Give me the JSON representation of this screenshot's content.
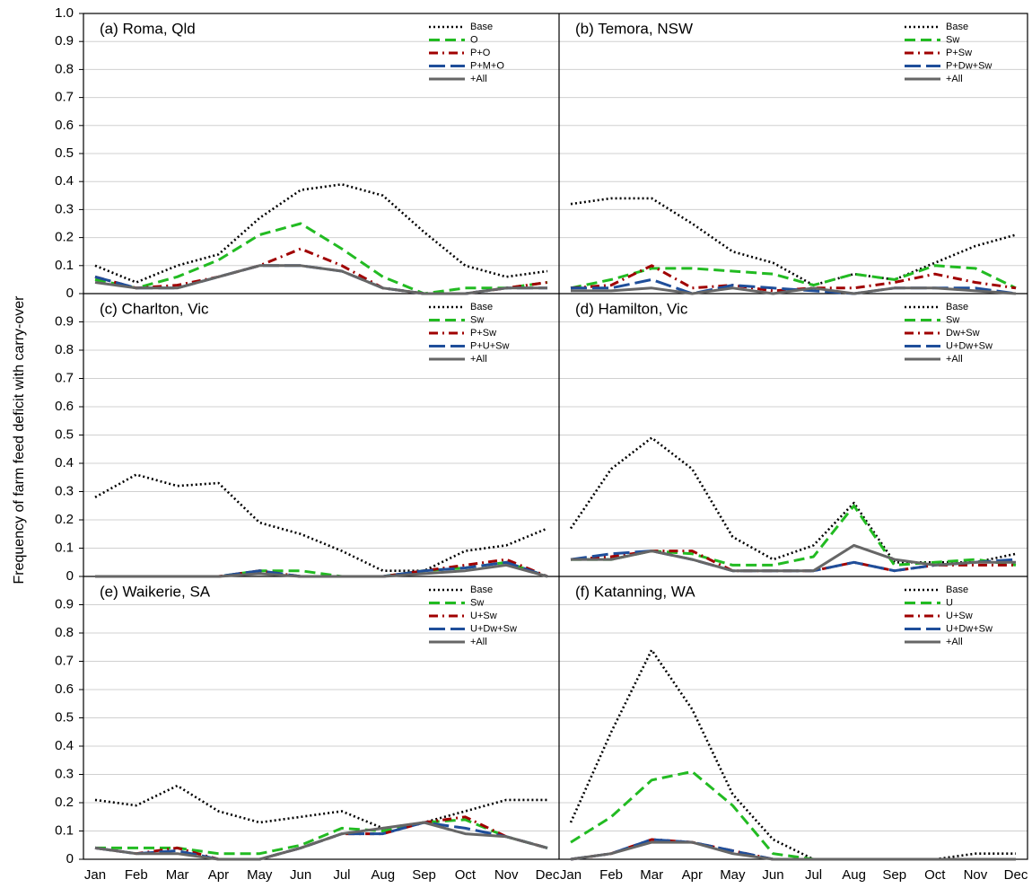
{
  "chart_data": [
    {
      "type": "line",
      "title": "(a) Roma, Qld",
      "ylim": [
        0,
        1
      ],
      "yticks": [
        0,
        0.1,
        0.2,
        0.3,
        0.4,
        0.5,
        0.6,
        0.7,
        0.8,
        0.9,
        {
          "value": 1,
          "label": "1.0"
        }
      ],
      "series": [
        {
          "name": "Base",
          "color": "#000000",
          "linestyle": "dotted",
          "values": [
            0.1,
            0.04,
            0.1,
            0.14,
            0.27,
            0.37,
            0.39,
            0.35,
            0.22,
            0.1,
            0.06,
            0.08
          ]
        },
        {
          "name": "O",
          "color": "#22bb22",
          "linestyle": "dashed",
          "values": [
            0.05,
            0.02,
            0.06,
            0.12,
            0.21,
            0.25,
            0.16,
            0.06,
            0.0,
            0.02,
            0.02,
            0.04
          ]
        },
        {
          "name": "P+O",
          "color": "#a00000",
          "linestyle": "dashdot",
          "values": [
            0.06,
            0.02,
            0.03,
            0.06,
            0.1,
            0.16,
            0.1,
            0.02,
            0.0,
            0.0,
            0.02,
            0.04
          ]
        },
        {
          "name": "P+M+O",
          "color": "#1f4e9a",
          "linestyle": "longdash",
          "values": [
            0.06,
            0.02,
            0.02,
            0.06,
            0.1,
            0.1,
            0.08,
            0.02,
            0.0,
            0.0,
            0.02,
            0.02
          ]
        },
        {
          "name": "+All",
          "color": "#666666",
          "linestyle": "solid",
          "values": [
            0.04,
            0.02,
            0.02,
            0.06,
            0.1,
            0.1,
            0.08,
            0.02,
            0.0,
            0.0,
            0.02,
            0.02
          ]
        }
      ]
    },
    {
      "type": "line",
      "title": "(b) Temora, NSW",
      "ylim": [
        0,
        1
      ],
      "series": [
        {
          "name": "Base",
          "color": "#000000",
          "linestyle": "dotted",
          "values": [
            0.32,
            0.34,
            0.34,
            0.25,
            0.15,
            0.11,
            0.03,
            0.07,
            0.05,
            0.11,
            0.17,
            0.21
          ]
        },
        {
          "name": "Sw",
          "color": "#22bb22",
          "linestyle": "dashed",
          "values": [
            0.02,
            0.05,
            0.09,
            0.09,
            0.08,
            0.07,
            0.03,
            0.07,
            0.05,
            0.1,
            0.09,
            0.02
          ]
        },
        {
          "name": "P+Sw",
          "color": "#a00000",
          "linestyle": "dashdot",
          "values": [
            0.02,
            0.03,
            0.1,
            0.02,
            0.03,
            0.01,
            0.02,
            0.02,
            0.04,
            0.07,
            0.04,
            0.02
          ]
        },
        {
          "name": "P+Dw+Sw",
          "color": "#1f4e9a",
          "linestyle": "longdash",
          "values": [
            0.02,
            0.02,
            0.05,
            0.0,
            0.03,
            0.02,
            0.01,
            0.0,
            0.02,
            0.02,
            0.02,
            0.0
          ]
        },
        {
          "name": "+All",
          "color": "#666666",
          "linestyle": "solid",
          "values": [
            0.01,
            0.01,
            0.02,
            0.0,
            0.02,
            0.0,
            0.02,
            0.0,
            0.02,
            0.02,
            0.01,
            0.0
          ]
        }
      ]
    },
    {
      "type": "line",
      "title": "(c) Charlton, Vic",
      "ylabel": "Frequency of farm feed deficit with carry-over",
      "ylim": [
        0,
        1
      ],
      "yticks": [
        0,
        0.1,
        0.2,
        0.3,
        0.4,
        0.5,
        0.6,
        0.7,
        0.8,
        0.9
      ],
      "series": [
        {
          "name": "Base",
          "color": "#000000",
          "linestyle": "dotted",
          "values": [
            0.28,
            0.36,
            0.32,
            0.33,
            0.19,
            0.15,
            0.09,
            0.02,
            0.02,
            0.09,
            0.11,
            0.17
          ]
        },
        {
          "name": "Sw",
          "color": "#22bb22",
          "linestyle": "dashed",
          "values": [
            0,
            0,
            0,
            0,
            0.02,
            0.02,
            0,
            0,
            0.02,
            0.03,
            0.05,
            0
          ]
        },
        {
          "name": "P+Sw",
          "color": "#a00000",
          "linestyle": "dashdot",
          "values": [
            0,
            0,
            0,
            0,
            0.02,
            0,
            0,
            0,
            0.02,
            0.04,
            0.06,
            0
          ]
        },
        {
          "name": "P+U+Sw",
          "color": "#1f4e9a",
          "linestyle": "longdash",
          "values": [
            0,
            0,
            0,
            0,
            0.02,
            0,
            0,
            0,
            0.02,
            0.03,
            0.05,
            0
          ]
        },
        {
          "name": "+All",
          "color": "#666666",
          "linestyle": "solid",
          "values": [
            0,
            0,
            0,
            0,
            0.01,
            0,
            0,
            0,
            0.01,
            0.02,
            0.04,
            0
          ]
        }
      ]
    },
    {
      "type": "line",
      "title": "(d) Hamilton, Vic",
      "ylim": [
        0,
        1
      ],
      "series": [
        {
          "name": "Base",
          "color": "#000000",
          "linestyle": "dotted",
          "values": [
            0.17,
            0.38,
            0.49,
            0.38,
            0.14,
            0.06,
            0.11,
            0.26,
            0.05,
            0.05,
            0.05,
            0.08
          ]
        },
        {
          "name": "Sw",
          "color": "#22bb22",
          "linestyle": "dashed",
          "values": [
            0.06,
            0.06,
            0.09,
            0.08,
            0.04,
            0.04,
            0.07,
            0.25,
            0.04,
            0.05,
            0.06,
            0.04
          ]
        },
        {
          "name": "Dw+Sw",
          "color": "#a00000",
          "linestyle": "dashdot",
          "values": [
            0.06,
            0.07,
            0.09,
            0.09,
            0.02,
            0.02,
            0.02,
            0.05,
            0.02,
            0.04,
            0.04,
            0.04
          ]
        },
        {
          "name": "U+Dw+Sw",
          "color": "#1f4e9a",
          "linestyle": "longdash",
          "values": [
            0.06,
            0.08,
            0.09,
            0.06,
            0.02,
            0.02,
            0.02,
            0.05,
            0.02,
            0.04,
            0.05,
            0.06
          ]
        },
        {
          "name": "+All",
          "color": "#666666",
          "linestyle": "solid",
          "values": [
            0.06,
            0.06,
            0.09,
            0.06,
            0.02,
            0.02,
            0.02,
            0.11,
            0.06,
            0.04,
            0.05,
            0.05
          ]
        }
      ]
    },
    {
      "type": "line",
      "title": "(e) Waikerie, SA",
      "ylim": [
        0,
        1
      ],
      "yticks": [
        0,
        0.1,
        0.2,
        0.3,
        0.4,
        0.5,
        0.6,
        0.7,
        0.8,
        0.9
      ],
      "categories": [
        "Jan",
        "Feb",
        "Mar",
        "Apr",
        "May",
        "Jun",
        "Jul",
        "Aug",
        "Sep",
        "Oct",
        "Nov",
        "Dec"
      ],
      "series": [
        {
          "name": "Base",
          "color": "#000000",
          "linestyle": "dotted",
          "values": [
            0.21,
            0.19,
            0.26,
            0.17,
            0.13,
            0.15,
            0.17,
            0.11,
            0.13,
            0.17,
            0.21,
            0.21
          ]
        },
        {
          "name": "Sw",
          "color": "#22bb22",
          "linestyle": "dashed",
          "values": [
            0.04,
            0.04,
            0.04,
            0.02,
            0.02,
            0.05,
            0.11,
            0.1,
            0.13,
            0.14,
            0.08,
            0.04
          ]
        },
        {
          "name": "U+Sw",
          "color": "#a00000",
          "linestyle": "dashdot",
          "values": [
            0.04,
            0.02,
            0.04,
            0.0,
            0.0,
            0.04,
            0.09,
            0.09,
            0.13,
            0.15,
            0.08,
            0.04
          ]
        },
        {
          "name": "U+Dw+Sw",
          "color": "#1f4e9a",
          "linestyle": "longdash",
          "values": [
            0.04,
            0.02,
            0.03,
            0.0,
            0.0,
            0.04,
            0.09,
            0.09,
            0.13,
            0.11,
            0.08,
            0.04
          ]
        },
        {
          "name": "+All",
          "color": "#666666",
          "linestyle": "solid",
          "values": [
            0.04,
            0.02,
            0.02,
            0.0,
            0.0,
            0.04,
            0.09,
            0.11,
            0.13,
            0.09,
            0.08,
            0.04
          ]
        }
      ]
    },
    {
      "type": "line",
      "title": "(f) Katanning, WA",
      "ylim": [
        0,
        1
      ],
      "categories": [
        "Jan",
        "Feb",
        "Mar",
        "Apr",
        "May",
        "Jun",
        "Jul",
        "Aug",
        "Sep",
        "Oct",
        "Nov",
        "Dec"
      ],
      "series": [
        {
          "name": "Base",
          "color": "#000000",
          "linestyle": "dotted",
          "values": [
            0.13,
            0.45,
            0.74,
            0.53,
            0.23,
            0.07,
            0,
            0,
            0,
            0,
            0.02,
            0.02
          ]
        },
        {
          "name": "U",
          "color": "#22bb22",
          "linestyle": "dashed",
          "values": [
            0.06,
            0.15,
            0.28,
            0.31,
            0.19,
            0.02,
            0,
            0,
            0,
            0,
            0,
            0
          ]
        },
        {
          "name": "U+Sw",
          "color": "#a00000",
          "linestyle": "dashdot",
          "values": [
            0,
            0.02,
            0.07,
            0.06,
            0.03,
            0,
            0,
            0,
            0,
            0,
            0,
            0
          ]
        },
        {
          "name": "U+Dw+Sw",
          "color": "#1f4e9a",
          "linestyle": "longdash",
          "values": [
            0,
            0.02,
            0.07,
            0.06,
            0.03,
            0,
            0,
            0,
            0,
            0,
            0,
            0
          ]
        },
        {
          "name": "+All",
          "color": "#666666",
          "linestyle": "solid",
          "values": [
            0,
            0.02,
            0.06,
            0.06,
            0.02,
            0,
            0,
            0,
            0,
            0,
            0,
            0
          ]
        }
      ]
    }
  ]
}
